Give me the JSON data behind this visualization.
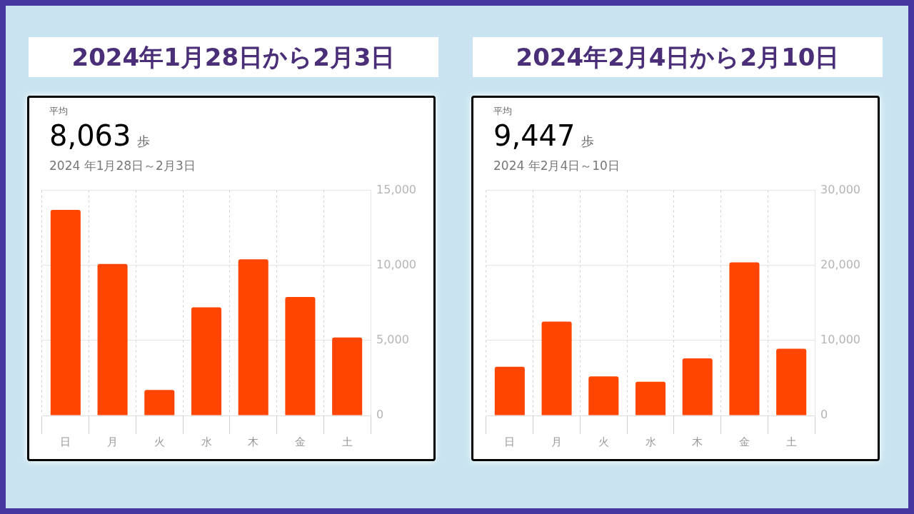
{
  "chart_data": [
    {
      "type": "bar",
      "title": "2024年1月28日から2月3日",
      "subtitle": "2024 年1月28日～2月3日",
      "annotations": [
        "平均",
        "8,063 歩"
      ],
      "categories": [
        "日",
        "月",
        "火",
        "水",
        "木",
        "金",
        "土"
      ],
      "values": [
        13700,
        10100,
        1700,
        7200,
        10400,
        7900,
        5200
      ],
      "color": "#ff4500",
      "ylim": [
        0,
        15000
      ],
      "yticks": [
        {
          "value": 0,
          "label": "0"
        },
        {
          "value": 5000,
          "label": "5,000"
        },
        {
          "value": 10000,
          "label": "10,000"
        },
        {
          "value": 15000,
          "label": "15,000"
        }
      ],
      "grid": true
    },
    {
      "type": "bar",
      "title": "2024年2月4日から2月10日",
      "subtitle": "2024 年2月4日～10日",
      "annotations": [
        "平均",
        "9,447 歩"
      ],
      "categories": [
        "日",
        "月",
        "火",
        "水",
        "木",
        "金",
        "土"
      ],
      "values": [
        6500,
        12500,
        5200,
        4500,
        7600,
        20400,
        8900
      ],
      "color": "#ff4500",
      "ylim": [
        0,
        30000
      ],
      "yticks": [
        {
          "value": 0,
          "label": "0"
        },
        {
          "value": 10000,
          "label": "10,000"
        },
        {
          "value": 20000,
          "label": "20,000"
        },
        {
          "value": 30000,
          "label": "30,000"
        }
      ],
      "grid": true
    }
  ]
}
